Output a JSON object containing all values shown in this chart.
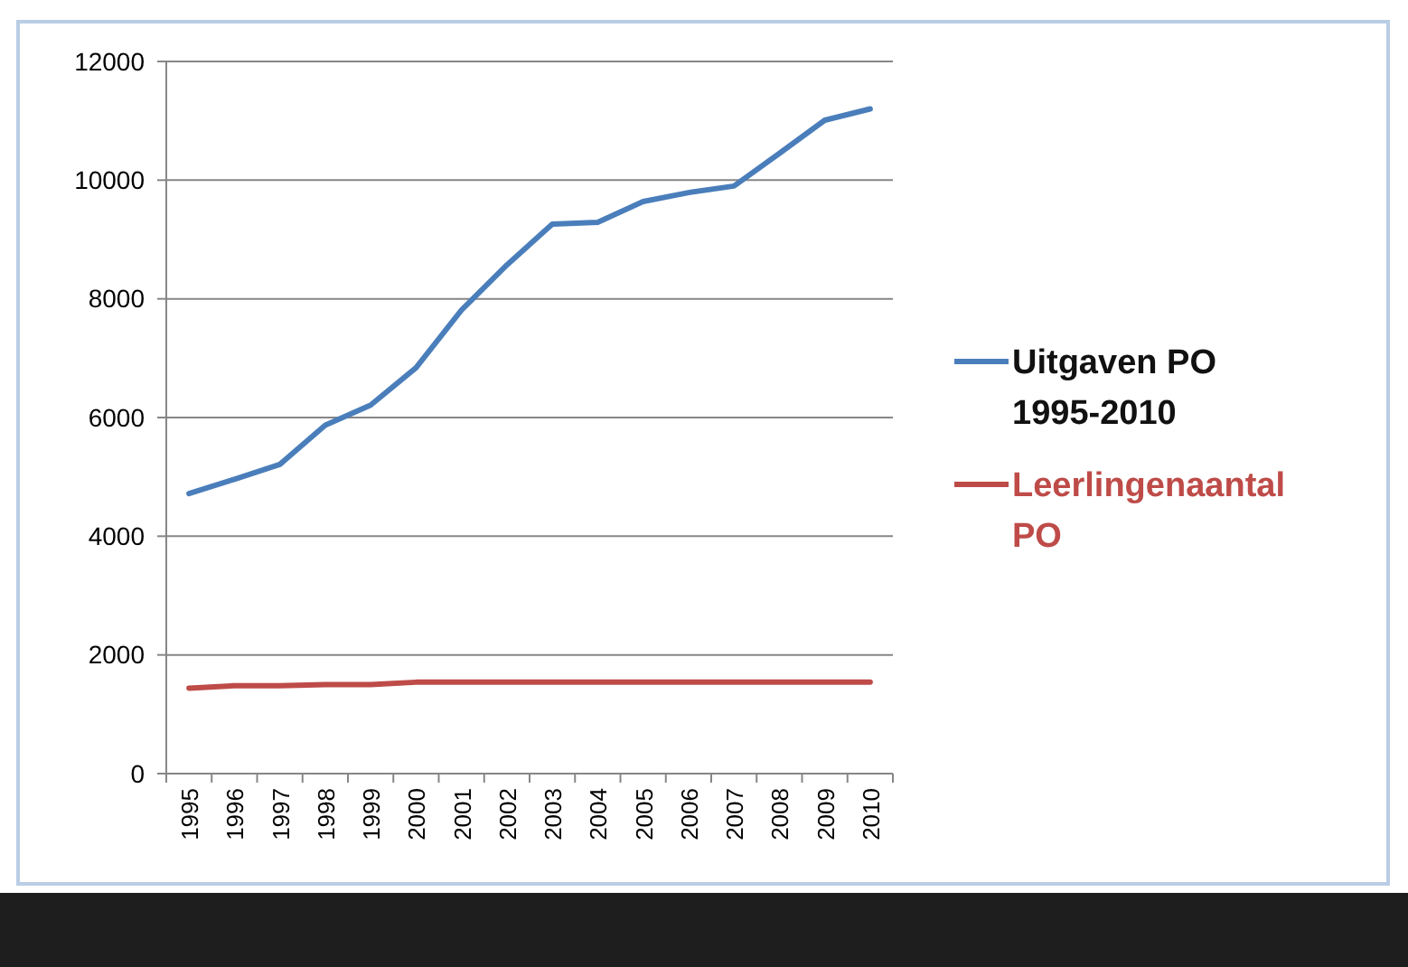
{
  "chart_data": {
    "type": "line",
    "categories": [
      "1995",
      "1996",
      "1997",
      "1998",
      "1999",
      "2000",
      "2001",
      "2002",
      "2003",
      "2004",
      "2005",
      "2006",
      "2007",
      "2008",
      "2009",
      "2010"
    ],
    "series": [
      {
        "name": "Uitgaven PO 1995-2010",
        "color": "#4a7ebb",
        "values": [
          4720,
          4960,
          5210,
          5870,
          6210,
          6840,
          7810,
          8570,
          9260,
          9290,
          9640,
          9790,
          9900,
          10450,
          11010,
          11200
        ]
      },
      {
        "name": "Leerlingenaantal PO",
        "color": "#be4b48",
        "values": [
          1440,
          1480,
          1480,
          1500,
          1500,
          1540,
          1540,
          1540,
          1540,
          1540,
          1540,
          1540,
          1540,
          1540,
          1540,
          1540
        ]
      }
    ],
    "ylim": [
      0,
      12000
    ],
    "yticks": [
      0,
      2000,
      4000,
      6000,
      8000,
      10000,
      12000
    ],
    "grid": "y",
    "legend": "right",
    "marker": "none",
    "line_style": "solid"
  }
}
